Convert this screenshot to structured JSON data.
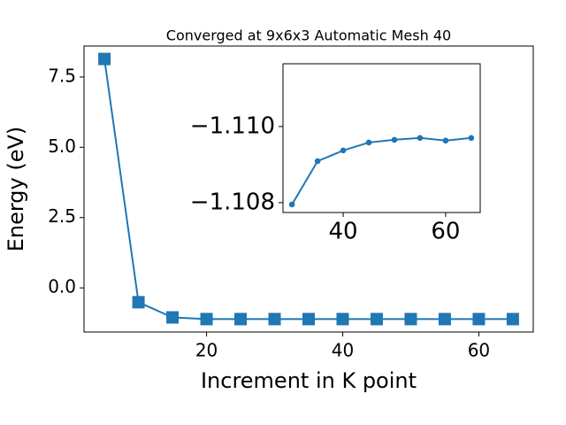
{
  "chart_data": [
    {
      "type": "line",
      "title": "Converged at 9x6x3 Automatic Mesh 40",
      "x_label": "Increment in K point",
      "y_label": "Energy (eV)",
      "x": [
        5,
        10,
        15,
        20,
        25,
        30,
        35,
        40,
        45,
        50,
        55,
        60,
        65
      ],
      "series": [
        {
          "color": "#1f77b4",
          "marker": "square",
          "values": [
            8.14,
            -0.51,
            -1.05,
            -1.11,
            -1.11,
            -1.11,
            -1.11,
            -1.11,
            -1.11,
            -1.11,
            -1.11,
            -1.11,
            -1.11
          ]
        }
      ],
      "xlim": [
        2,
        68
      ],
      "xticks": [
        20,
        40,
        60
      ],
      "ylim": [
        -1.57,
        8.6
      ],
      "yticks": [
        {
          "value": 0,
          "label": "0.0"
        },
        2.5,
        {
          "value": 5,
          "label": "5.0"
        },
        7.5
      ]
    },
    {
      "type": "line",
      "x": [
        30,
        35,
        40,
        45,
        50,
        55,
        60,
        65
      ],
      "series": [
        {
          "color": "#1f77b4",
          "marker": "circle",
          "values": [
            -1.10795,
            -1.10909,
            -1.10937,
            -1.10958,
            -1.10965,
            -1.1097,
            -1.10963,
            -1.1097
          ]
        }
      ],
      "xlim": [
        28.25,
        66.75
      ],
      "xticks": [
        40,
        60
      ],
      "ylim": [
        -1.10774,
        -1.11165
      ],
      "yticks": [
        {
          "value": -1.108,
          "label": "−1.108"
        },
        {
          "value": -1.11,
          "label": "−1.110"
        }
      ]
    }
  ]
}
